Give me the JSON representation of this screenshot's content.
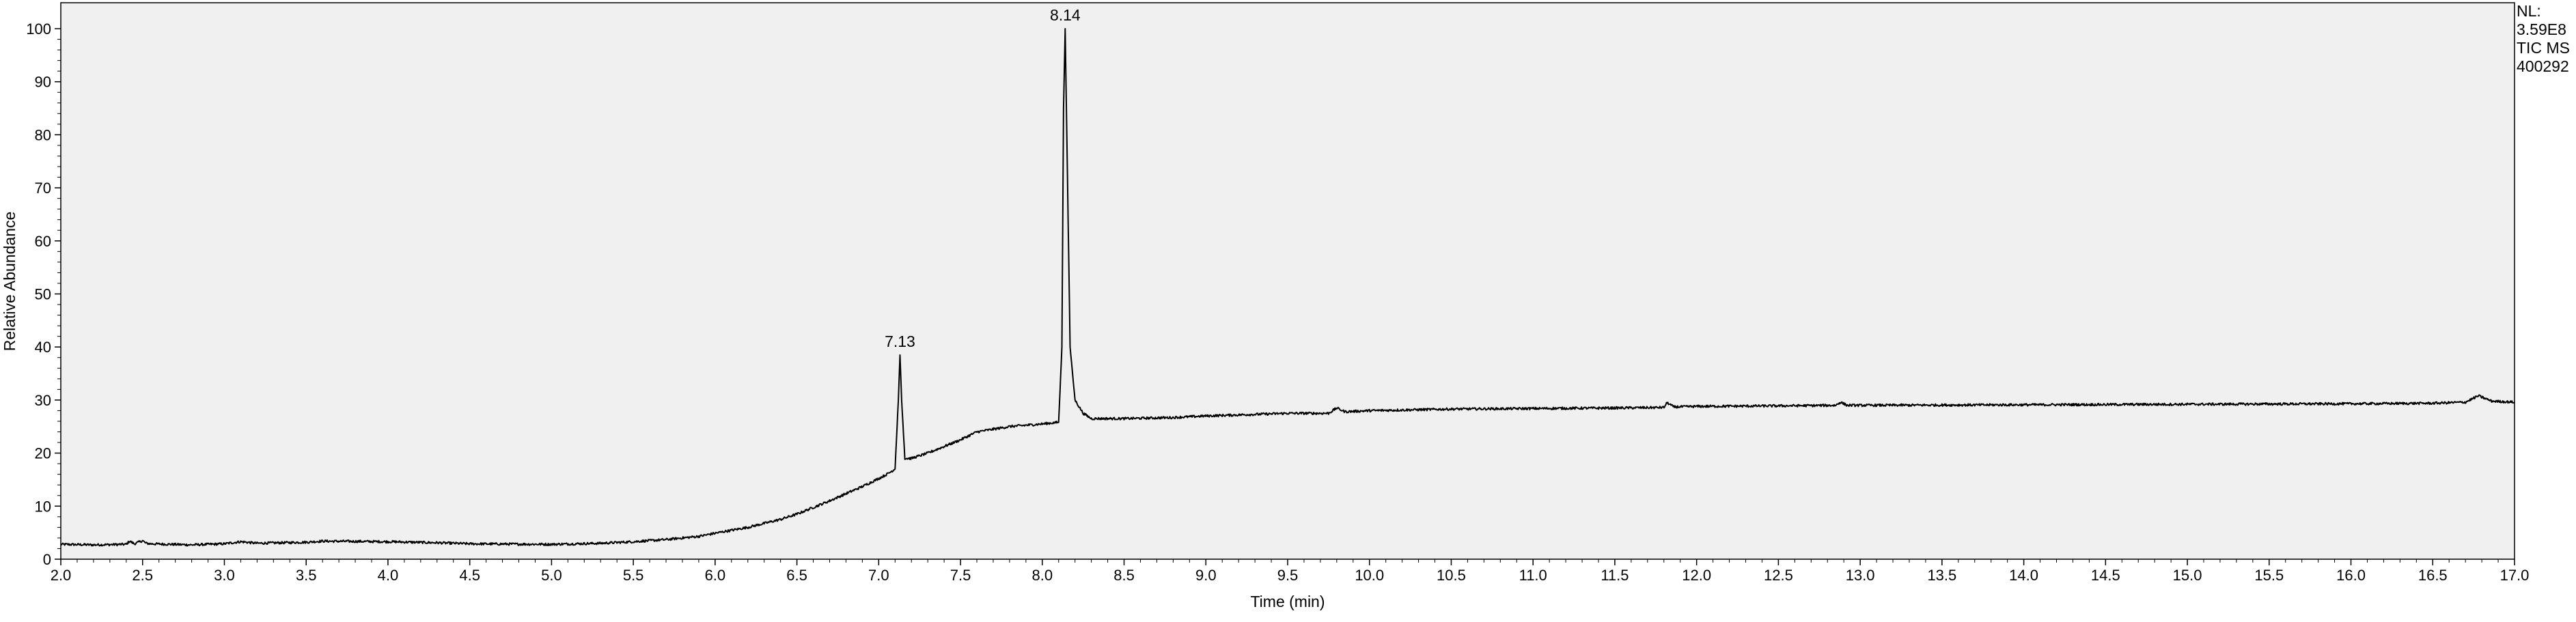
{
  "chart_data": {
    "type": "line",
    "xlabel": "Time (min)",
    "ylabel": "Relative Abundance",
    "xlim": [
      2.0,
      17.0
    ],
    "ylim": [
      0,
      100
    ],
    "x_ticks": [
      "2.0",
      "2.5",
      "3.0",
      "3.5",
      "4.0",
      "4.5",
      "5.0",
      "5.5",
      "6.0",
      "6.5",
      "7.0",
      "7.5",
      "8.0",
      "8.5",
      "9.0",
      "9.5",
      "10.0",
      "10.5",
      "11.0",
      "11.5",
      "12.0",
      "12.5",
      "13.0",
      "13.5",
      "14.0",
      "14.5",
      "15.0",
      "15.5",
      "16.0",
      "16.5",
      "17.0"
    ],
    "y_ticks": [
      "0",
      "10",
      "20",
      "30",
      "40",
      "50",
      "60",
      "70",
      "80",
      "90",
      "100"
    ],
    "grid": false,
    "colors": {
      "plot_background": "#f0f0f0",
      "trace": "#000000"
    },
    "info_lines": [
      "NL:",
      "3.59E8",
      "TIC  MS",
      "400292"
    ],
    "peak_labels": [
      {
        "text": "7.13",
        "x": 7.13,
        "y": 38.5
      },
      {
        "text": "8.14",
        "x": 8.14,
        "y": 100
      }
    ],
    "series": [
      {
        "x": [
          2.0,
          2.2,
          2.4,
          2.42,
          2.45,
          2.5,
          2.52,
          2.55,
          2.8,
          3.0,
          3.1,
          3.2,
          3.5,
          3.6,
          4.0,
          4.3,
          4.5,
          5.0,
          5.3,
          5.5,
          5.7,
          5.9,
          6.0,
          6.2,
          6.4,
          6.5,
          6.7,
          6.9,
          7.0,
          7.05,
          7.1,
          7.12,
          7.13,
          7.14,
          7.16,
          7.2,
          7.3,
          7.5,
          7.6,
          7.8,
          8.0,
          8.1,
          8.12,
          8.13,
          8.14,
          8.15,
          8.17,
          8.2,
          8.25,
          8.3,
          8.5,
          8.8,
          9.0,
          9.5,
          9.75,
          9.8,
          9.85,
          10.0,
          10.5,
          11.0,
          11.5,
          11.8,
          11.82,
          11.86,
          12.0,
          12.5,
          12.85,
          12.88,
          12.92,
          13.0,
          14.0,
          15.0,
          16.0,
          16.5,
          16.7,
          16.78,
          16.86,
          17.0
        ],
        "y": [
          2.8,
          2.7,
          2.8,
          3.4,
          2.9,
          3.5,
          3.0,
          2.9,
          2.7,
          2.9,
          3.3,
          3.0,
          3.2,
          3.4,
          3.3,
          3.1,
          2.9,
          2.8,
          3.0,
          3.3,
          3.7,
          4.3,
          4.9,
          6.0,
          7.5,
          8.5,
          11.0,
          13.7,
          15.2,
          16.0,
          17.0,
          30.0,
          38.5,
          30.0,
          19.0,
          19.0,
          20.0,
          22.5,
          24.0,
          25.0,
          25.5,
          25.8,
          40.0,
          85.0,
          100,
          80.0,
          40.0,
          30.0,
          27.5,
          26.5,
          26.5,
          26.7,
          27.0,
          27.5,
          27.5,
          28.5,
          27.8,
          28.0,
          28.3,
          28.4,
          28.5,
          28.6,
          29.5,
          28.7,
          28.8,
          28.9,
          29.0,
          29.6,
          29.0,
          29.0,
          29.1,
          29.2,
          29.3,
          29.4,
          29.6,
          30.8,
          29.8,
          29.6
        ]
      }
    ]
  }
}
